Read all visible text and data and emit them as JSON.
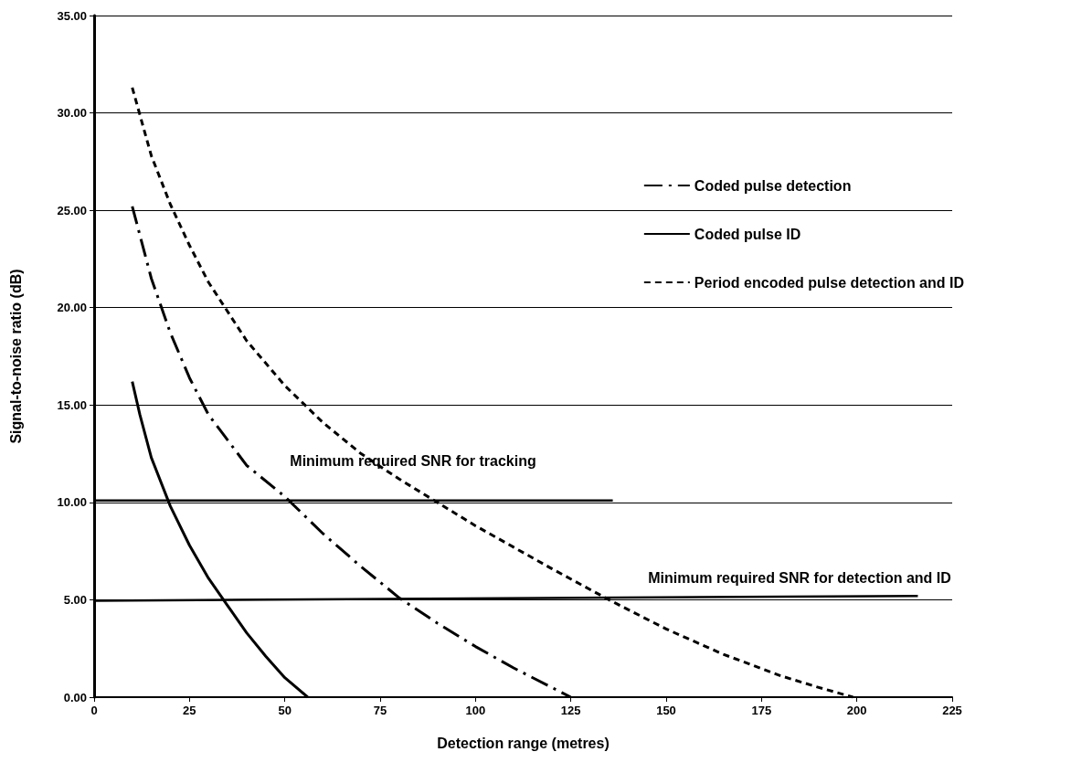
{
  "chart_data": {
    "type": "line",
    "xlabel": "Detection range (metres)",
    "ylabel": "Signal-to-noise ratio (dB)",
    "xlim": [
      0,
      225
    ],
    "xticks": [
      0,
      25,
      50,
      75,
      100,
      125,
      150,
      175,
      200,
      225
    ],
    "ylim": [
      0,
      35
    ],
    "yticks": [
      {
        "value": 0,
        "label": "0.00"
      },
      {
        "value": 5,
        "label": "5.00"
      },
      {
        "value": 10,
        "label": "10.00"
      },
      {
        "value": 15,
        "label": "15.00"
      },
      {
        "value": 20,
        "label": "20.00"
      },
      {
        "value": 25,
        "label": "25.00"
      },
      {
        "value": 30,
        "label": "30.00"
      },
      {
        "value": 35,
        "label": "35.00"
      }
    ],
    "grid": "y",
    "legend": "top right",
    "marker": "none",
    "series": [
      {
        "name": "Coded pulse detection",
        "color": "#000000",
        "line_style": "dashdot",
        "x": [
          10,
          15,
          20,
          25,
          30,
          40,
          50,
          60,
          70,
          80,
          90,
          100,
          110,
          120,
          125
        ],
        "values": [
          25.2,
          21.5,
          18.7,
          16.4,
          14.5,
          11.9,
          10.3,
          8.4,
          6.7,
          5.1,
          3.8,
          2.6,
          1.5,
          0.5,
          0
        ]
      },
      {
        "name": "Coded pulse ID",
        "color": "#000000",
        "line_style": "solid",
        "x": [
          10,
          12,
          15,
          20,
          25,
          30,
          35,
          40,
          45,
          50,
          56
        ],
        "values": [
          16.2,
          14.5,
          12.3,
          9.8,
          7.8,
          6.1,
          4.7,
          3.3,
          2.1,
          1.0,
          0
        ]
      },
      {
        "name": "Period encoded pulse detection and ID",
        "color": "#000000",
        "line_style": "dashed",
        "x": [
          10,
          15,
          20,
          25,
          30,
          40,
          50,
          60,
          70,
          80,
          90,
          100,
          110,
          120,
          135,
          150,
          165,
          180,
          190,
          199
        ],
        "values": [
          31.3,
          27.8,
          25.3,
          23.2,
          21.3,
          18.3,
          16.0,
          14.1,
          12.5,
          11.2,
          10.0,
          8.8,
          7.7,
          6.6,
          5.0,
          3.5,
          2.2,
          1.1,
          0.5,
          0
        ]
      },
      {
        "color": "#000000",
        "line_style": "solid",
        "x": [
          0,
          136
        ],
        "values": [
          10.1,
          10.1
        ]
      },
      {
        "color": "#000000",
        "line_style": "solid",
        "x": [
          0,
          216
        ],
        "values": [
          4.95,
          5.2
        ]
      }
    ],
    "annotations": [
      "Minimum required SNR for tracking",
      "Minimum required SNR for detection and ID"
    ]
  }
}
